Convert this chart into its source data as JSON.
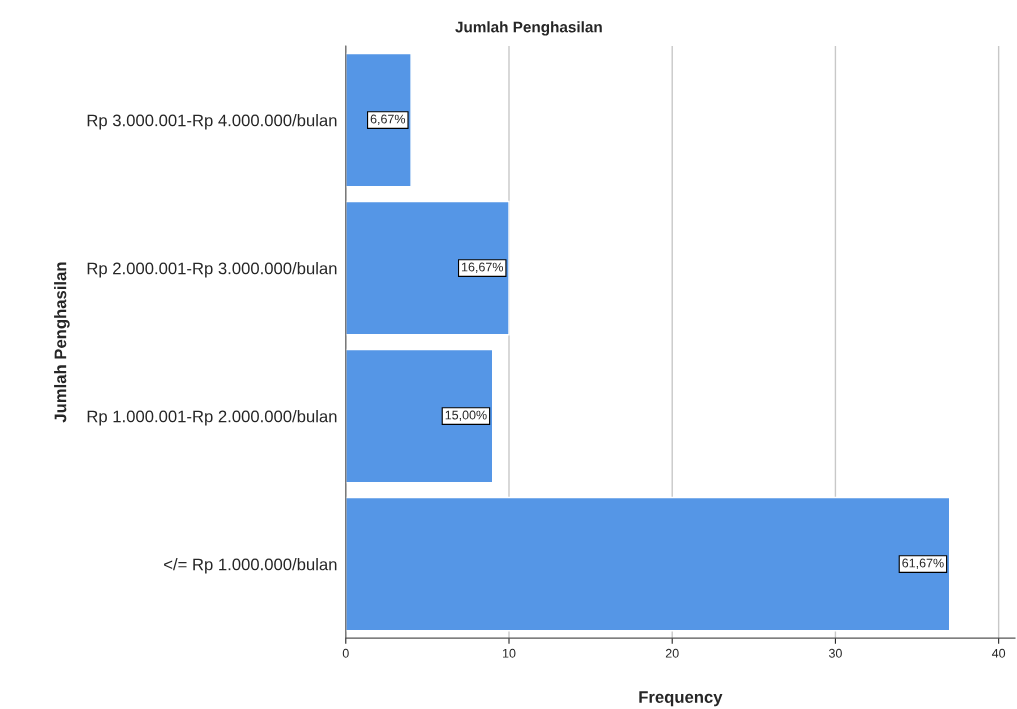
{
  "chart_data": {
    "type": "bar",
    "orientation": "horizontal",
    "title": "Jumlah Penghasilan",
    "xlabel": "Frequency",
    "ylabel": "Jumlah Penghasilan",
    "categories": [
      "Rp 3.000.001-Rp 4.000.000/bulan",
      "Rp 2.000.001-Rp 3.000.000/bulan",
      "Rp 1.000.001-Rp 2.000.000/bulan",
      "</= Rp 1.000.000/bulan"
    ],
    "values": [
      4,
      10,
      9,
      37
    ],
    "annotations": [
      {
        "text": "6,67%",
        "x": 4,
        "y": "Rp 3.000.001-Rp 4.000.000/bulan"
      },
      {
        "text": "16,67%",
        "x": 10,
        "y": "Rp 2.000.001-Rp 3.000.000/bulan"
      },
      {
        "text": "15,00%",
        "x": 9,
        "y": "Rp 1.000.001-Rp 2.000.000/bulan"
      },
      {
        "text": "61,67%",
        "x": 37,
        "y": "</= Rp 1.000.000/bulan"
      }
    ],
    "color": "#5596e6",
    "xlim": [
      0,
      41
    ],
    "xticks": [
      0,
      10,
      20,
      30,
      40
    ],
    "grid": "x",
    "legend": false
  }
}
